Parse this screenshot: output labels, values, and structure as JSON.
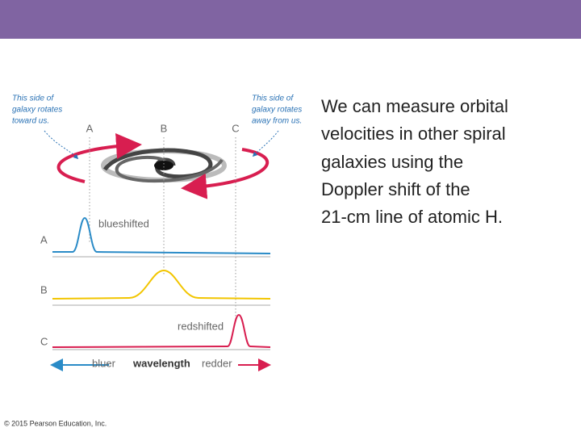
{
  "slide": {
    "body_lines": [
      "We can measure orbital",
      "velocities in other spiral",
      "galaxies using the",
      "Doppler shift of the",
      "21-cm line of atomic H."
    ],
    "copyright": "© 2015 Pearson Education, Inc.",
    "figure": {
      "left_note": [
        "This side of",
        "galaxy rotates",
        "toward us."
      ],
      "right_note": [
        "This side of",
        "galaxy rotates",
        "away from us."
      ],
      "top_labels": [
        "A",
        "B",
        "C"
      ],
      "row_labels": [
        "A",
        "B",
        "C"
      ],
      "blueshifted": "blueshifted",
      "redshifted": "redshifted",
      "bluer": "bluer",
      "wavelength": "wavelength",
      "redder": "redder"
    }
  }
}
